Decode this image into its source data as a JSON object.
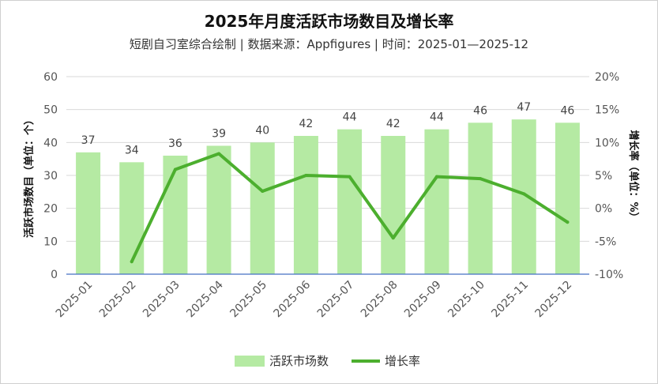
{
  "chart_data": {
    "type": "bar+line",
    "title": "2025年月度活跃市场数目及增长率",
    "subtitle": "短剧自习室综合绘制 | 数据来源：Appfigures | 时间：2025-01—2025-12",
    "categories": [
      "2025-01",
      "2025-02",
      "2025-03",
      "2025-04",
      "2025-05",
      "2025-06",
      "2025-07",
      "2025-08",
      "2025-09",
      "2025-10",
      "2025-11",
      "2025-12"
    ],
    "series": [
      {
        "name": "活跃市场数",
        "type": "bar",
        "axis": "left",
        "color": "#b5eaa3",
        "values": [
          37,
          34,
          36,
          39,
          40,
          42,
          44,
          42,
          44,
          46,
          47,
          46
        ]
      },
      {
        "name": "增长率",
        "type": "line",
        "axis": "right",
        "color": "#4caf2e",
        "values": [
          null,
          -8.1,
          5.9,
          8.3,
          2.6,
          5.0,
          4.8,
          -4.5,
          4.8,
          4.5,
          2.2,
          -2.1
        ]
      }
    ],
    "ylabel_left": "活跃市场数目（单位：个）",
    "ylabel_right": "增长率（单位：%）",
    "ylim_left": [
      0,
      60
    ],
    "yticks_left": [
      "0",
      "10",
      "20",
      "30",
      "40",
      "50",
      "60"
    ],
    "ylim_right": [
      -10,
      20
    ],
    "yticks_right": [
      "-10%",
      "-5%",
      "0%",
      "5%",
      "10%",
      "15%",
      "20%"
    ],
    "grid": true,
    "legend_position": "bottom"
  }
}
